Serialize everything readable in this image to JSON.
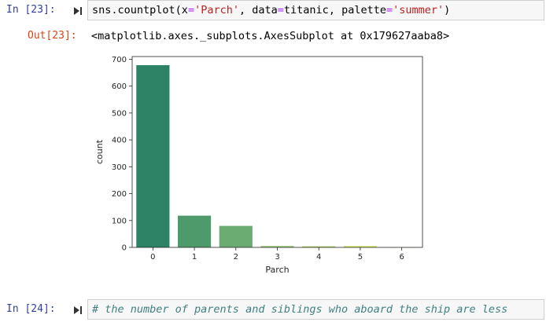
{
  "cell1": {
    "prompt": "In [23]:",
    "code": {
      "fn": "sns.countplot(",
      "arg1_name": "x",
      "eq1": "=",
      "arg1_val": "'Parch'",
      "sep1": ", ",
      "arg2_name": "data",
      "eq2": "=",
      "arg2_val": "titanic",
      "sep2": ", ",
      "arg3_name": "palette",
      "eq3": "=",
      "arg3_val": "'summer'",
      "close": ")"
    }
  },
  "output1": {
    "prompt": "Out[23]:",
    "text": "<matplotlib.axes._subplots.AxesSubplot at 0x179627aaba8>"
  },
  "cell2": {
    "prompt": "In [24]:",
    "comment": "# the number of parents and siblings who aboard the ship are less"
  },
  "colors": {
    "in_prompt": "#303f9f",
    "out_prompt": "#d84315",
    "bars": [
      "#2d8366",
      "#4f9a6a",
      "#6aac71",
      "#8dc169",
      "#abd066",
      "#cde265",
      "#f0f466"
    ]
  },
  "icons": {
    "run": "run-cell-icon"
  },
  "chart_data": {
    "type": "bar",
    "categories": [
      "0",
      "1",
      "2",
      "3",
      "4",
      "5",
      "6"
    ],
    "values": [
      678,
      118,
      80,
      5,
      4,
      5,
      1
    ],
    "xlabel": "Parch",
    "ylabel": "count",
    "ylim": [
      0,
      710
    ],
    "yticks": [
      0,
      100,
      200,
      300,
      400,
      500,
      600,
      700
    ],
    "grid": false,
    "legend": "none"
  }
}
